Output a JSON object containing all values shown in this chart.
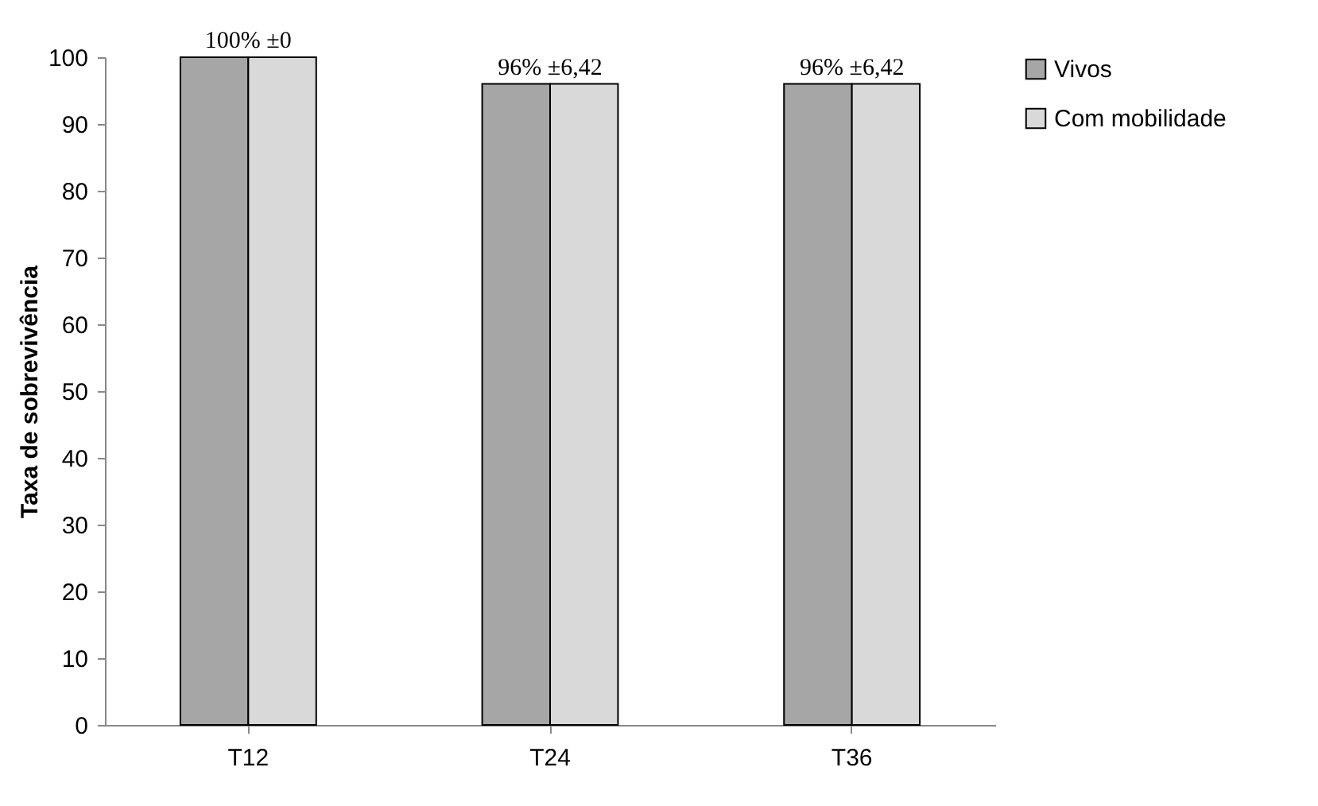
{
  "chart_data": {
    "type": "bar",
    "ylabel": "Taxa de sobrevivência",
    "categories": [
      "T12",
      "T24",
      "T36"
    ],
    "series": [
      {
        "name": "Vivos",
        "color": "#a6a6a6",
        "values": [
          100,
          96,
          96
        ]
      },
      {
        "name": "Com mobilidade",
        "color": "#d9d9d9",
        "values": [
          100,
          96,
          96
        ]
      }
    ],
    "annotations": [
      {
        "text": "100% ±0",
        "x": "T12",
        "y": 100
      },
      {
        "text": "96% ±6,42",
        "x": "T24",
        "y": 96
      },
      {
        "text": "96% ±6,42",
        "x": "T36",
        "y": 96
      }
    ],
    "ylim": [
      0,
      100
    ],
    "yticks": [
      0,
      10,
      20,
      30,
      40,
      50,
      60,
      70,
      80,
      90,
      100
    ],
    "grid": false,
    "legend": "right"
  }
}
